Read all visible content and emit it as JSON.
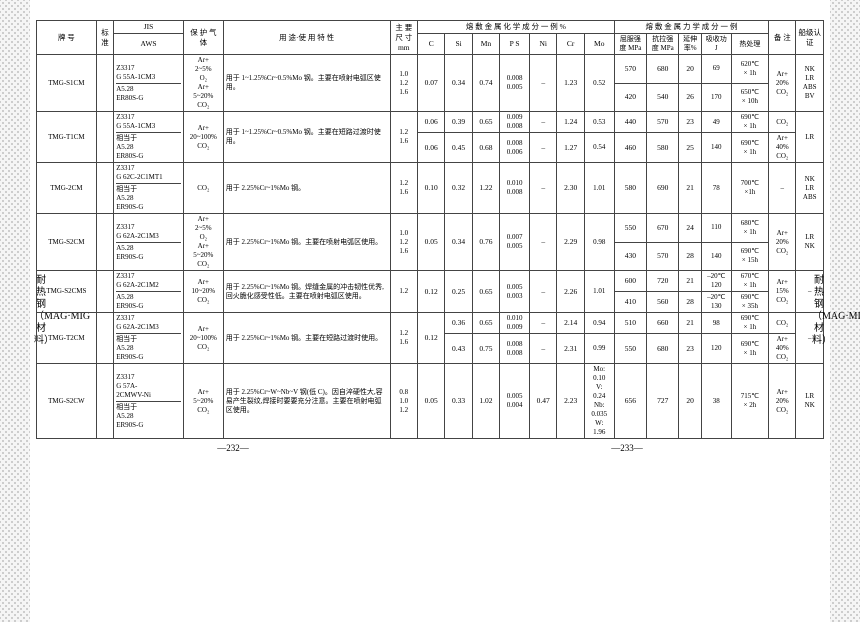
{
  "sideLabel": "耐热钢（MAG·MIG材料）",
  "colors": {
    "border": "#444444",
    "gutter_bg": "#f5f5f5",
    "gutter_dot": "#c0c0c0",
    "page_bg": "#ffffff",
    "text": "#000000"
  },
  "headers": {
    "brand": "牌 号",
    "std": "标准",
    "jis": "JIS",
    "aws": "AWS",
    "gas": "保 护 气 体",
    "usage": "用 途·使 用 特 性",
    "size": "主 要 尺 寸 mm",
    "chemGroup": "熔 敷 金 属 化 学 成 分 一 例  %",
    "mechGroup": "熔 敷 金 属 力 学 成 分 一 例",
    "C": "C",
    "Si": "Si",
    "Mn": "Mn",
    "PS": "P S",
    "Ni": "Ni",
    "Cr": "Cr",
    "Mo": "Mo",
    "ys": "屈服强度 MPa",
    "ts": "抗拉强度 MPa",
    "el": "延伸率%",
    "imp": "吸收功 J",
    "ht": "热处理",
    "remark": "备 注",
    "cert": "船级认证"
  },
  "rows": [
    {
      "brand": "TMG-S1CM",
      "jis": "Z3317\nG 55A-1CM3",
      "aws": "A5.28\nER80S-G",
      "gas": "Ar+\n2~5%\nO₂\nAr+\n5~20%\nCO₂",
      "usage": "用于 1~1.25%Cr~0.5%Mo 钢。主要在喷射电弧区使用。",
      "size": "1.0\n1.2\n1.6",
      "chem": {
        "C": "0.07",
        "Si": "0.34",
        "Mn": "0.74",
        "PS": "0.008\n0.005",
        "Ni": "–",
        "Cr": "1.23",
        "Mo": "0.52"
      },
      "mech": [
        {
          "ys": "570",
          "ts": "680",
          "el": "20",
          "imp": "69",
          "ht": "620℃\n× 1h",
          "remark": "Ar+\n20%\nCO₂"
        },
        {
          "ys": "420",
          "ts": "540",
          "el": "26",
          "imp": "170",
          "ht": "650℃\n× 10h"
        }
      ],
      "cert": "NK\nLR\nABS\nBV"
    },
    {
      "brand": "TMG-T1CM",
      "jis": "Z3317\nG 55A-1CM3",
      "aws": "相当于\nA5.28\nER80S-G",
      "gas": "Ar+\n20~100%\nCO₂",
      "usage": "用于 1~1.25%Cr~0.5%Mo 钢。主要在短路过渡时使用。",
      "size": "1.2\n1.6",
      "sub": [
        {
          "chem": {
            "C": "0.06",
            "Si": "0.39",
            "Mn": "0.65",
            "PS": "0.009\n0.008",
            "Ni": "–",
            "Cr": "1.24",
            "Mo": "0.53"
          },
          "mech": {
            "ys": "440",
            "ts": "570",
            "el": "23",
            "imp": "49",
            "ht": "690℃\n× 1h",
            "remark": "CO₂"
          }
        },
        {
          "chem": {
            "C": "0.06",
            "Si": "0.45",
            "Mn": "0.68",
            "PS": "0.008\n0.006",
            "Ni": "–",
            "Cr": "1.27",
            "Mo": "0.54"
          },
          "mech": {
            "ys": "460",
            "ts": "580",
            "el": "25",
            "imp": "140",
            "ht": "690℃\n× 1h",
            "remark": "Ar+\n40%\nCO₂"
          }
        }
      ],
      "cert": "LR"
    },
    {
      "brand": "TMG-2CM",
      "jis": "Z3317\nG 62C-2C1MT1",
      "aws": "相当于\nA5.28\nER90S-G",
      "gas": "CO₂",
      "usage": "用于 2.25%Cr~1%Mo 钢。",
      "size": "1.2\n1.6",
      "chem": {
        "C": "0.10",
        "Si": "0.32",
        "Mn": "1.22",
        "PS": "0.010\n0.008",
        "Ni": "–",
        "Cr": "2.30",
        "Mo": "1.01"
      },
      "mech": [
        {
          "ys": "580",
          "ts": "690",
          "el": "21",
          "imp": "78",
          "ht": "700℃\n×1h",
          "remark": "–"
        }
      ],
      "cert": "NK\nLR\nABS"
    },
    {
      "brand": "TMG-S2CM",
      "jis": "Z3317\nG 62A-2C1M3",
      "aws": "A5.28\nER90S-G",
      "gas": "Ar+\n2~5%\nO₂\nAr+\n5~20%\nCO₂",
      "usage": "用于 2.25%Cr~1%Mo 钢。主要在喷射电弧区使用。",
      "size": "1.0\n1.2\n1.6",
      "chem": {
        "C": "0.05",
        "Si": "0.34",
        "Mn": "0.76",
        "PS": "0.007\n0.005",
        "Ni": "–",
        "Cr": "2.29",
        "Mo": "0.98"
      },
      "mech": [
        {
          "ys": "550",
          "ts": "670",
          "el": "24",
          "imp": "110",
          "ht": "680℃\n× 1h",
          "remark": "Ar+\n20%\nCO₂"
        },
        {
          "ys": "430",
          "ts": "570",
          "el": "28",
          "imp": "140",
          "ht": "690℃\n× 15h"
        }
      ],
      "cert": "LR\nNK"
    },
    {
      "brand": "TMG-S2CMS",
      "jis": "Z3317\nG 62A-2C1M2",
      "aws": "A5.28\nER90S-G",
      "gas": "Ar+\n10~20%\nCO₂",
      "usage": "用于 2.25%Cr~1%Mo 钢。焊缝金属的冲击韧性优秀,回火脆化感受性低。主要在喷射电弧区使用。",
      "size": "1.2",
      "chem": {
        "C": "0.12",
        "Si": "0.25",
        "Mn": "0.65",
        "PS": "0.005\n0.003",
        "Ni": "–",
        "Cr": "2.26",
        "Mo": "1.01"
      },
      "mech": [
        {
          "ys": "600",
          "ts": "720",
          "el": "21",
          "imp": "–20℃\n120",
          "ht": "670℃\n× 1h",
          "remark": "Ar+\n15%\nCO₂"
        },
        {
          "ys": "410",
          "ts": "560",
          "el": "28",
          "imp": "–20℃\n130",
          "ht": "690℃\n× 35h"
        }
      ],
      "cert": "–"
    },
    {
      "brand": "TMG-T2CM",
      "jis": "Z3317\nG 62A-2C1M3",
      "aws": "相当于\nA5.28\nER90S-G",
      "gas": "Ar+\n20~100%\nCO₂",
      "usage": "用于 2.25%Cr~1%Mo 钢。主要在短路过渡时使用。",
      "size": "1.2\n1.6",
      "Cshared": "0.12",
      "sub": [
        {
          "chem": {
            "Si": "0.36",
            "Mn": "0.65",
            "PS": "0.010\n0.009",
            "Ni": "–",
            "Cr": "2.14",
            "Mo": "0.94"
          },
          "mech": {
            "ys": "510",
            "ts": "660",
            "el": "21",
            "imp": "98",
            "ht": "690℃\n× 1h",
            "remark": "CO₂"
          }
        },
        {
          "chem": {
            "Si": "0.43",
            "Mn": "0.75",
            "PS": "0.008\n0.008",
            "Ni": "–",
            "Cr": "2.31",
            "Mo": "0.99"
          },
          "mech": {
            "ys": "550",
            "ts": "680",
            "el": "23",
            "imp": "120",
            "ht": "690℃\n× 1h",
            "remark": "Ar+\n40%\nCO₂"
          }
        }
      ],
      "cert": "–"
    },
    {
      "brand": "TMG-S2CW",
      "jis": "Z3317\nG 57A-\n2CMWV-Ni",
      "aws": "相当于\nA5.28\nER90S-G",
      "gas": "Ar+\n5~20%\nCO₂",
      "usage": "用于 2.25%Cr~W~Nb~V 钢(低 C)。因自淬硬性大,容易产生裂纹,焊接时要要充分注意。主要在喷射电弧区使用。",
      "size": "0.8\n1.0\n1.2",
      "chem": {
        "C": "0.05",
        "Si": "0.33",
        "Mn": "1.02",
        "PS": "0.005\n0.004",
        "Ni": "0.47",
        "Cr": "2.23",
        "Mo": "Mo:\n0.10\nV:\n0.24\nNb:\n0.035\nW:\n1.96"
      },
      "mech": [
        {
          "ys": "656",
          "ts": "727",
          "el": "20",
          "imp": "38",
          "ht": "715℃\n× 2h",
          "remark": "Ar+\n20%\nCO₂"
        }
      ],
      "cert": "LR\nNK"
    }
  ],
  "pagenums": {
    "left": "—232—",
    "right": "—233—"
  }
}
